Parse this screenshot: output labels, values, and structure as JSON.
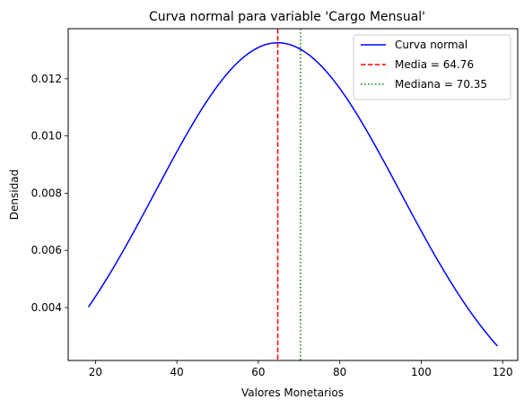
{
  "chart_data": {
    "type": "line",
    "title": "Curva normal para variable 'Cargo Mensual'",
    "xlabel": "Valores Monetarios",
    "ylabel": "Densidad",
    "xlim": [
      13.3,
      123.7
    ],
    "ylim": [
      0.00215,
      0.01375
    ],
    "xticks": [
      20,
      40,
      60,
      80,
      100,
      120
    ],
    "yticks": [
      0.004,
      0.006,
      0.008,
      0.01,
      0.012
    ],
    "ytick_labels": [
      "0.004",
      "0.006",
      "0.008",
      "0.010",
      "0.012"
    ],
    "grid": false,
    "legend_position": "top-right",
    "curve": {
      "name": "Curva normal",
      "color": "#0000ff",
      "mean": 64.76,
      "std": 30.09,
      "x_range": [
        18.25,
        118.75
      ],
      "samples": 200
    },
    "vlines": [
      {
        "name": "Media = 64.76",
        "x": 64.76,
        "color": "#ff0000",
        "style": "dashed"
      },
      {
        "name": "Mediana = 70.35",
        "x": 70.35,
        "color": "#008000",
        "style": "dotted"
      }
    ]
  }
}
